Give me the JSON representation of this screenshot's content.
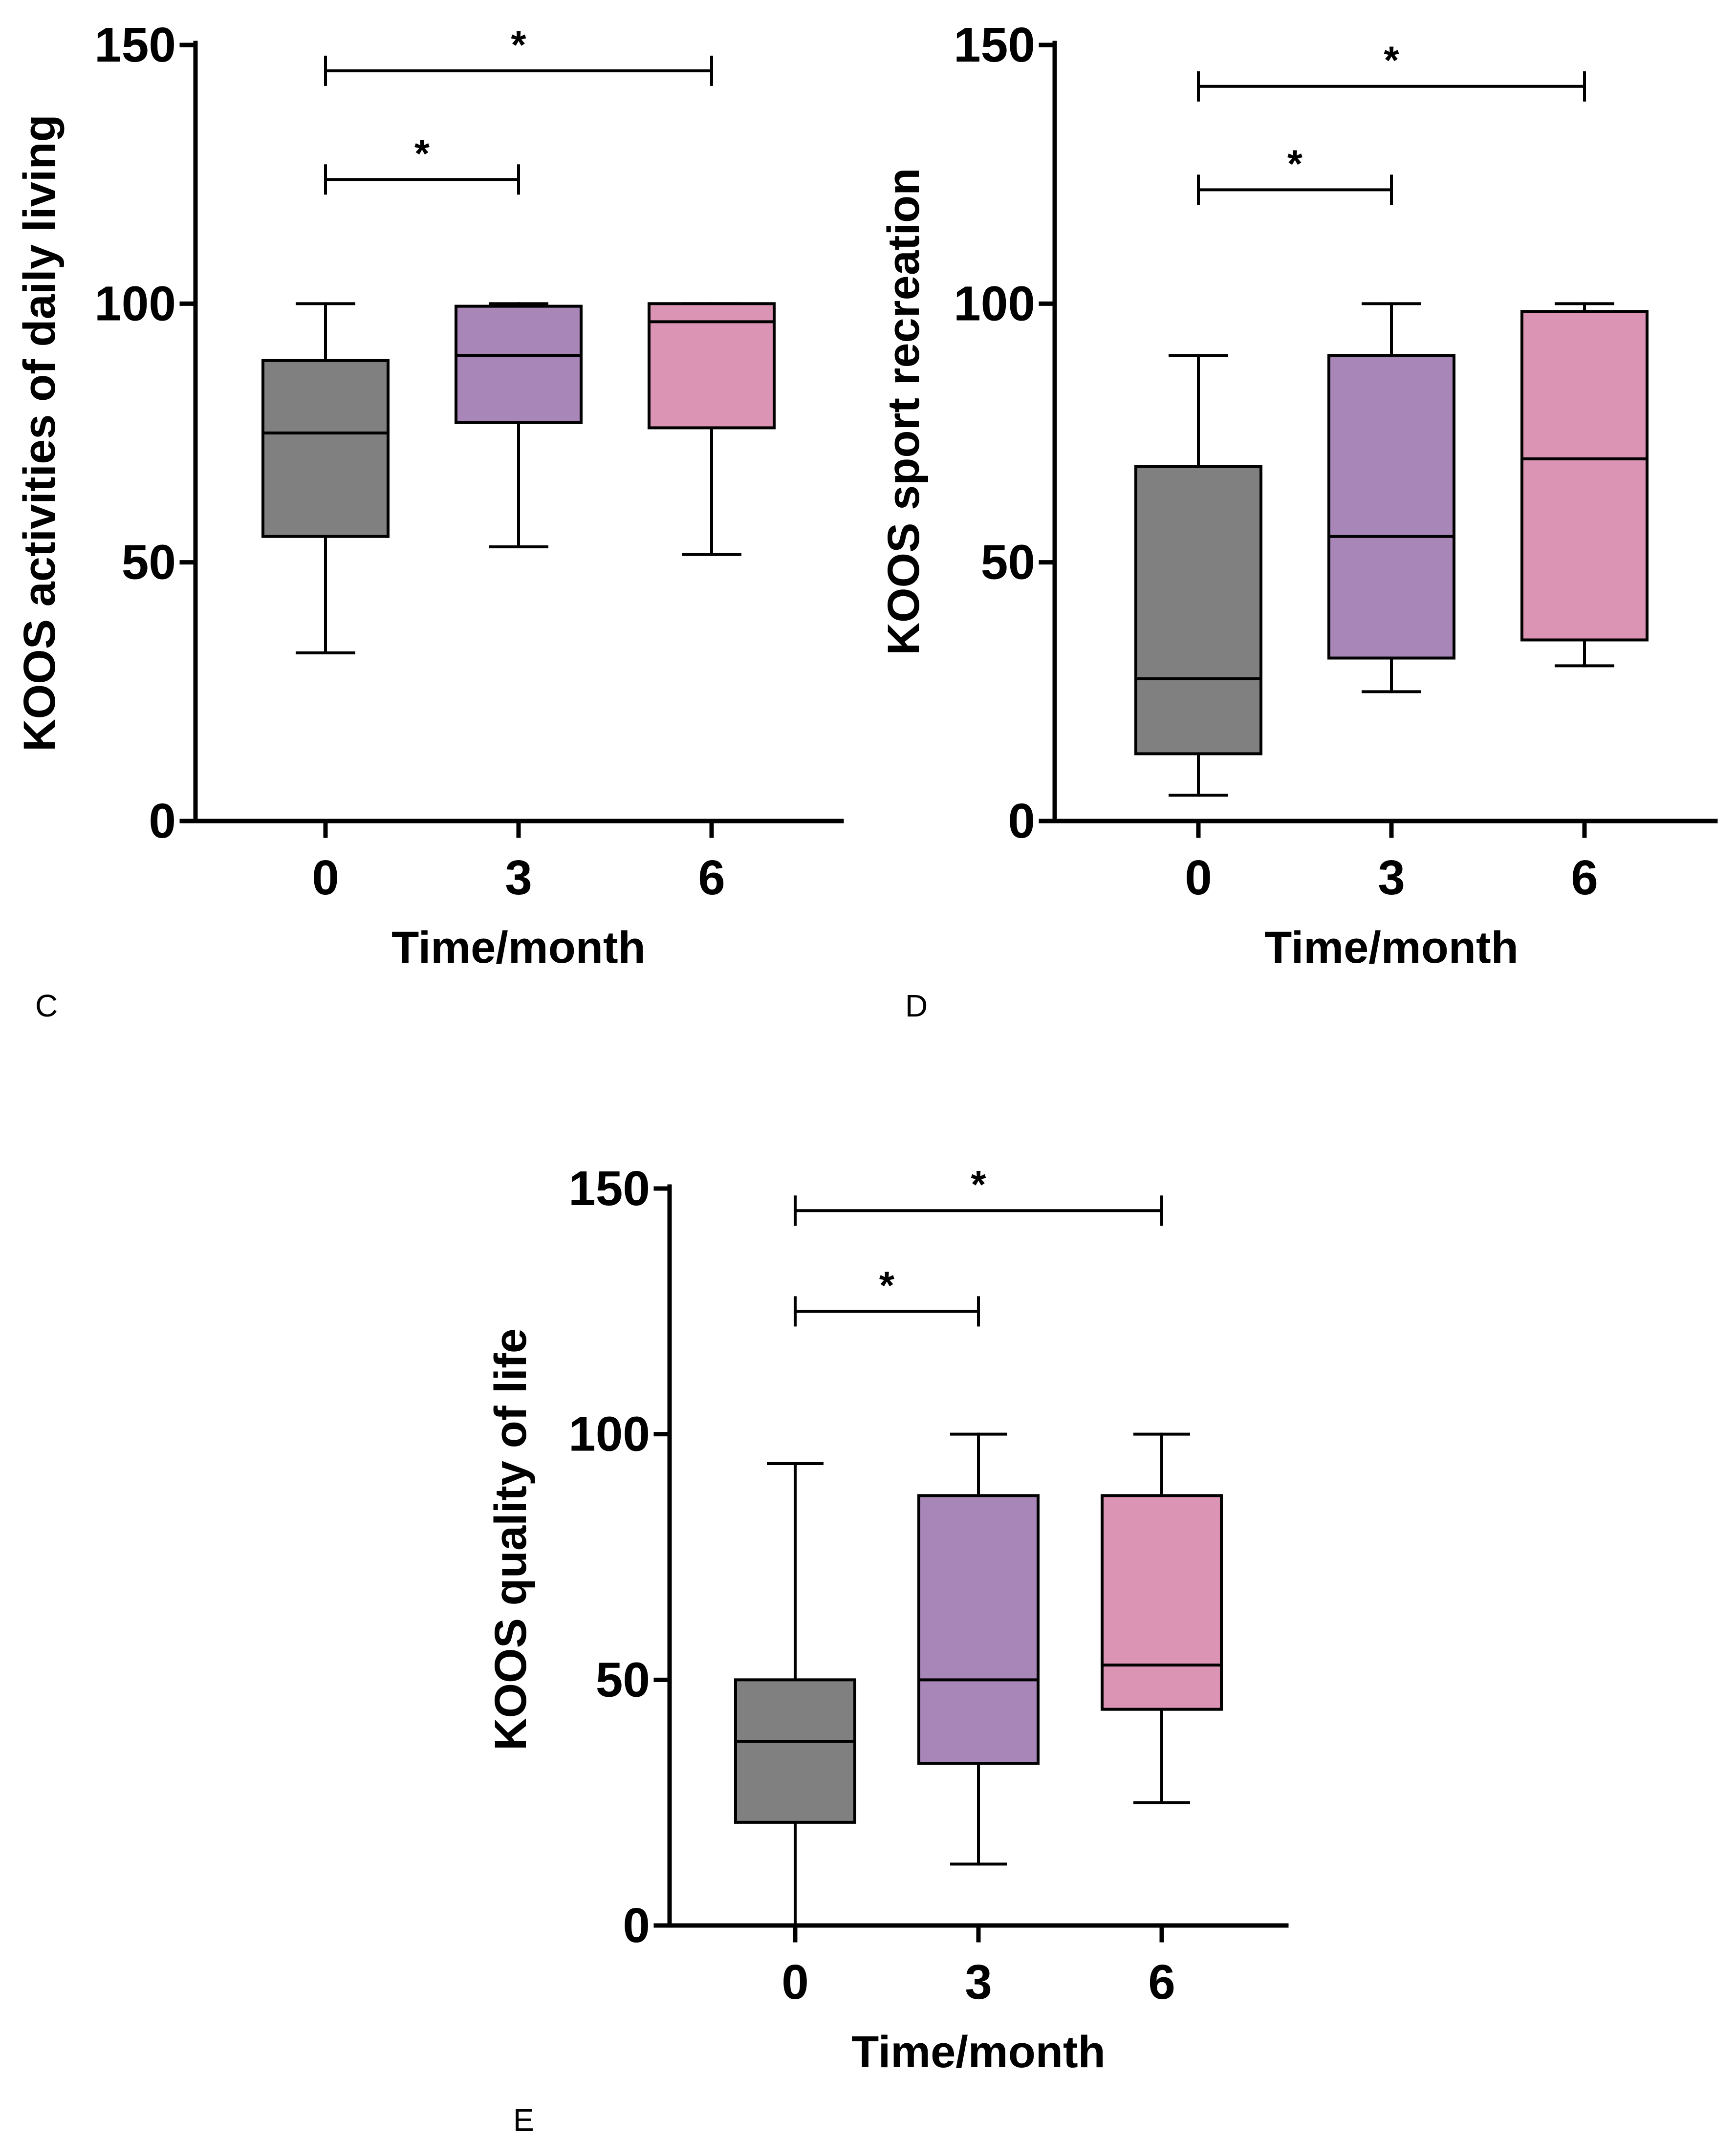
{
  "colors": {
    "month_0": "#808080",
    "month_3": "#a886b8",
    "month_6": "#dc94b4",
    "ink": "#000000"
  },
  "chart_data": [
    {
      "panel": "C",
      "type": "boxplot",
      "xlabel": "Time/month",
      "ylabel": "KOOS activities of daily living",
      "categories": [
        "0",
        "3",
        "6"
      ],
      "ylim": [
        0,
        150
      ],
      "yticks": [
        "0",
        "50",
        "100",
        "150"
      ],
      "boxes": [
        {
          "category": "0",
          "min": 32.5,
          "q1": 55,
          "median": 75,
          "q3": 89,
          "max": 100
        },
        {
          "category": "3",
          "min": 53,
          "q1": 77,
          "median": 90,
          "q3": 99.5,
          "max": 100
        },
        {
          "category": "6",
          "min": 51.5,
          "q1": 76,
          "median": 96.5,
          "q3": 100,
          "max": 100
        }
      ],
      "significance": [
        {
          "from": "0",
          "to": "3",
          "y": 124,
          "label": "*"
        },
        {
          "from": "0",
          "to": "6",
          "y": 145,
          "label": "*"
        }
      ]
    },
    {
      "panel": "D",
      "type": "boxplot",
      "xlabel": "Time/month",
      "ylabel": "KOOS sport recreation",
      "categories": [
        "0",
        "3",
        "6"
      ],
      "ylim": [
        0,
        150
      ],
      "yticks": [
        "0",
        "50",
        "100",
        "150"
      ],
      "boxes": [
        {
          "category": "0",
          "min": 5,
          "q1": 13,
          "median": 27.5,
          "q3": 68.5,
          "max": 90
        },
        {
          "category": "3",
          "min": 25,
          "q1": 31.5,
          "median": 55,
          "q3": 90,
          "max": 100
        },
        {
          "category": "6",
          "min": 30,
          "q1": 35,
          "median": 70,
          "q3": 98.5,
          "max": 100
        }
      ],
      "significance": [
        {
          "from": "0",
          "to": "3",
          "y": 122,
          "label": "*"
        },
        {
          "from": "0",
          "to": "6",
          "y": 142,
          "label": "*"
        }
      ]
    },
    {
      "panel": "E",
      "type": "boxplot",
      "xlabel": "Time/month",
      "ylabel": "KOOS quality of life",
      "categories": [
        "0",
        "3",
        "6"
      ],
      "ylim": [
        0,
        150
      ],
      "yticks": [
        "0",
        "50",
        "100",
        "150"
      ],
      "boxes": [
        {
          "category": "0",
          "min": 0,
          "q1": 21,
          "median": 37.5,
          "q3": 50,
          "max": 94
        },
        {
          "category": "3",
          "min": 12.5,
          "q1": 33,
          "median": 50,
          "q3": 87.5,
          "max": 100
        },
        {
          "category": "6",
          "min": 25,
          "q1": 44,
          "median": 53,
          "q3": 87.5,
          "max": 100
        }
      ],
      "significance": [
        {
          "from": "0",
          "to": "3",
          "y": 125,
          "label": "*"
        },
        {
          "from": "0",
          "to": "6",
          "y": 145.5,
          "label": "*"
        }
      ]
    }
  ]
}
